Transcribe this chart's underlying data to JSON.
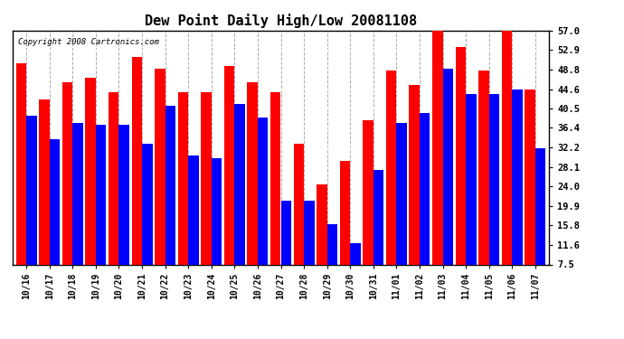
{
  "title": "Dew Point Daily High/Low 20081108",
  "copyright": "Copyright 2008 Cartronics.com",
  "categories": [
    "10/16",
    "10/17",
    "10/18",
    "10/19",
    "10/20",
    "10/21",
    "10/22",
    "10/23",
    "10/24",
    "10/25",
    "10/26",
    "10/27",
    "10/28",
    "10/29",
    "10/30",
    "10/31",
    "11/01",
    "11/02",
    "11/03",
    "11/04",
    "11/05",
    "11/06",
    "11/07"
  ],
  "highs": [
    50.0,
    42.5,
    46.0,
    47.0,
    44.0,
    51.5,
    49.0,
    44.0,
    44.0,
    49.5,
    46.0,
    44.0,
    33.0,
    24.5,
    29.5,
    38.0,
    48.5,
    45.5,
    57.0,
    53.5,
    48.5,
    57.0,
    44.5
  ],
  "lows": [
    39.0,
    34.0,
    37.5,
    37.0,
    37.0,
    33.0,
    41.0,
    30.5,
    30.0,
    41.5,
    38.5,
    21.0,
    21.0,
    16.0,
    12.0,
    27.5,
    37.5,
    39.5,
    49.0,
    43.5,
    43.5,
    44.5,
    32.0
  ],
  "high_color": "#ff0000",
  "low_color": "#0000ff",
  "bg_color": "#ffffff",
  "plot_bg_color": "#ffffff",
  "ylim_min": 7.5,
  "ylim_max": 57.0,
  "yticks": [
    7.5,
    11.6,
    15.8,
    19.9,
    24.0,
    28.1,
    32.2,
    36.4,
    40.5,
    44.6,
    48.8,
    52.9,
    57.0
  ]
}
